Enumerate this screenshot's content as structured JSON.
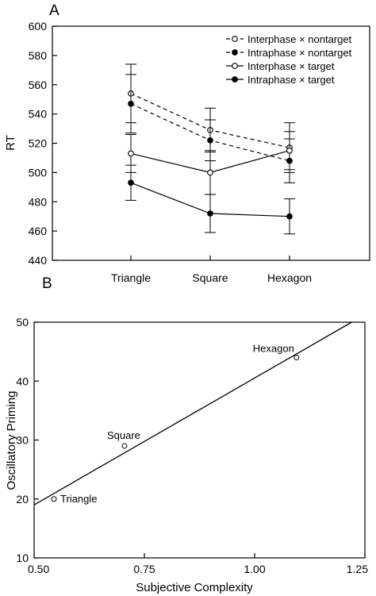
{
  "chart_data": [
    {
      "panel": "A",
      "type": "line",
      "title": "",
      "xlabel": "",
      "ylabel": "RT",
      "categories": [
        "Triangle",
        "Square",
        "Hexagon"
      ],
      "ylim": [
        440,
        600
      ],
      "yticks": [
        440,
        460,
        480,
        500,
        520,
        540,
        560,
        580,
        600
      ],
      "legend_position": "top-right",
      "grid": false,
      "series": [
        {
          "name": "Interphase × nontarget",
          "values": [
            554,
            529,
            517
          ],
          "errors": [
            20,
            15,
            17
          ],
          "line_style": "dashed",
          "marker": "open"
        },
        {
          "name": "Intraphase × nontarget",
          "values": [
            547,
            522,
            508
          ],
          "errors": [
            20,
            14,
            15
          ],
          "line_style": "dashed",
          "marker": "filled"
        },
        {
          "name": "Interphase × target",
          "values": [
            513,
            500,
            515
          ],
          "errors": [
            13,
            15,
            13
          ],
          "line_style": "solid",
          "marker": "open"
        },
        {
          "name": "Intraphase × target",
          "values": [
            493,
            472,
            470
          ],
          "errors": [
            12,
            13,
            12
          ],
          "line_style": "solid",
          "marker": "filled"
        }
      ]
    },
    {
      "panel": "B",
      "type": "scatter",
      "title": "",
      "xlabel": "Subjective Complexity",
      "ylabel": "Oscillatory Priming",
      "xlim": [
        0.5,
        1.25
      ],
      "ylim": [
        10,
        50
      ],
      "xticks": [
        "0.50",
        "0.75",
        "1.00",
        "1.25"
      ],
      "yticks": [
        "10",
        "20",
        "30",
        "40",
        "50"
      ],
      "grid": false,
      "points": [
        {
          "label": "Triangle",
          "x": 0.545,
          "y": 20
        },
        {
          "label": "Square",
          "x": 0.705,
          "y": 29
        },
        {
          "label": "Hexagon",
          "x": 1.095,
          "y": 44
        }
      ],
      "fit_line": {
        "x": [
          0.5,
          1.22
        ],
        "y": [
          19,
          50
        ]
      }
    }
  ]
}
